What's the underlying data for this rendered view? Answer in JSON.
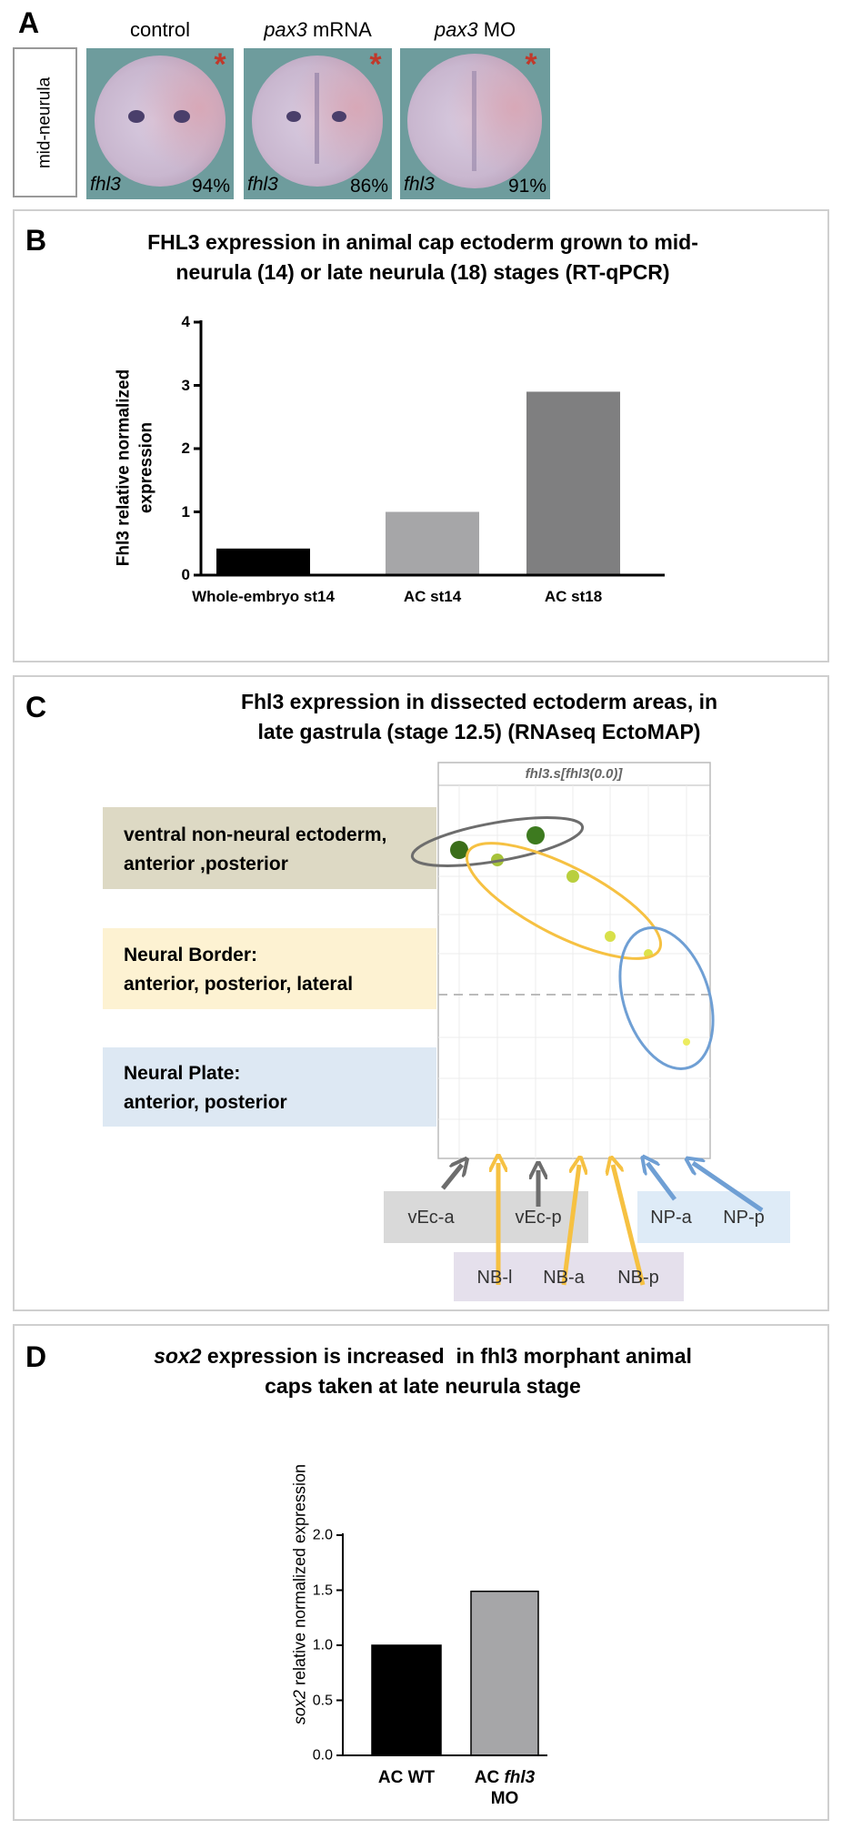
{
  "panel_a": {
    "label": "A",
    "row_label": "mid-neurula",
    "columns": [
      {
        "title": [
          {
            "text": "control"
          }
        ],
        "gene": "fhl3",
        "percent": "94%"
      },
      {
        "title": [
          {
            "text": "pax3",
            "italic": true
          },
          {
            "text": " mRNA"
          }
        ],
        "gene": "fhl3",
        "percent": "86%"
      },
      {
        "title": [
          {
            "text": "pax3",
            "italic": true
          },
          {
            "text": " MO"
          }
        ],
        "gene": "fhl3",
        "percent": "91%"
      }
    ]
  },
  "chart_data": [
    {
      "label": "B",
      "type": "bar",
      "title": [
        "FHL3 expression in animal cap ectoderm grown to mid-",
        "neurula (14) or late neurula (18) stages (RT-qPCR)"
      ],
      "ylabel": [
        "Fhl3 relative normalized",
        "expression"
      ],
      "categories": [
        "Whole-embryo st14",
        "AC st14",
        "AC st18"
      ],
      "values": [
        0.42,
        1.0,
        2.9
      ],
      "colors": [
        "#000000",
        "#a6a6a8",
        "#7f7f80"
      ],
      "ylim": [
        0,
        4
      ],
      "yticks": [
        0,
        1,
        2,
        3,
        4
      ]
    },
    {
      "label": "D",
      "type": "bar",
      "title": [
        [
          {
            "text": "sox2",
            "italic": true
          },
          {
            "text": " expression is increased  in fhl3 morphant animal"
          }
        ],
        "caps taken at late neurula stage"
      ],
      "ylabel": [
        [
          {
            "text": "sox2",
            "italic": true
          },
          {
            "text": " relative normalized expression"
          }
        ]
      ],
      "categories": [
        "AC WT",
        [
          {
            "text": "AC "
          },
          {
            "text": "fhl3",
            "italic": true
          },
          {
            "text": " MO"
          }
        ]
      ],
      "values": [
        1.0,
        1.49
      ],
      "colors": [
        "#000000",
        "#a6a6a8"
      ],
      "ylim": [
        0,
        2
      ],
      "yticks": [
        {
          "value": 0,
          "label": "0.0"
        },
        {
          "value": 0.5,
          "label": "0.5"
        },
        {
          "value": 1,
          "label": "1.0"
        },
        {
          "value": 1.5,
          "label": "1.5"
        },
        {
          "value": 2,
          "label": "2.0"
        }
      ]
    }
  ],
  "panel_c": {
    "label": "C",
    "title": [
      "Fhl3 expression in dissected ectoderm areas, in",
      "late gastrula (stage 12.5) (RNAseq EctoMAP)"
    ],
    "plot_title": "fhl3.s[fhl3(0.0)]",
    "groups": [
      [
        "ventral non-neural ectoderm,",
        "anterior ,posterior"
      ],
      [
        "Neural Border:",
        "anterior, posterior, lateral"
      ],
      [
        "Neural Plate:",
        "anterior, posterior"
      ]
    ],
    "samples": [
      "vEc-a",
      "vEc-p",
      "NB-l",
      "NB-a",
      "NB-p",
      "NP-a",
      "NP-p"
    ]
  }
}
